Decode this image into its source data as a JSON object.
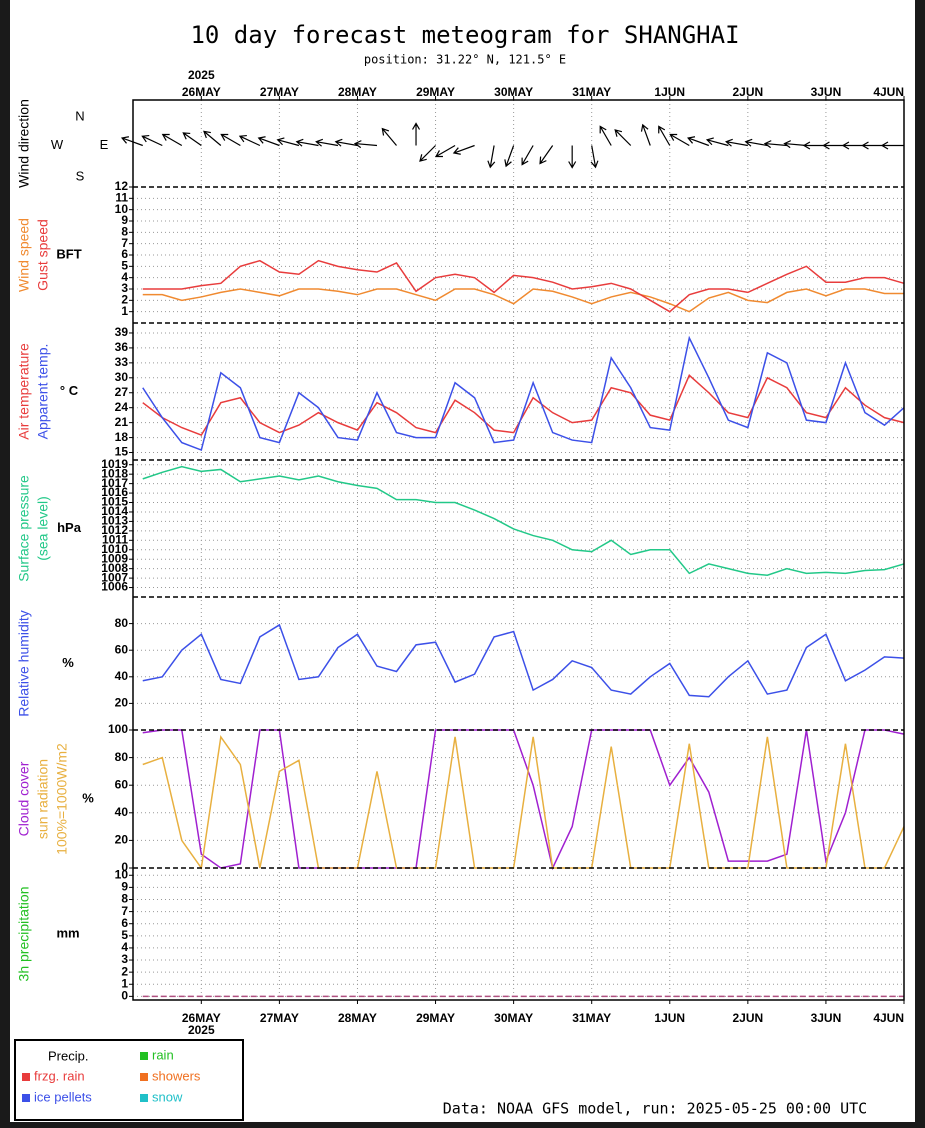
{
  "title": "10 day forecast meteogram for SHANGHAI",
  "subtitle": "position: 31.22° N, 121.5° E",
  "footer": "Data: NOAA GFS model, run: 2025-05-25 00:00 UTC",
  "year": "2025",
  "time": {
    "xlim": [
      3,
      240
    ],
    "xticks": [
      {
        "value": 24,
        "label": "26MAY"
      },
      {
        "value": 48,
        "label": "27MAY"
      },
      {
        "value": 72,
        "label": "28MAY"
      },
      {
        "value": 96,
        "label": "29MAY"
      },
      {
        "value": 120,
        "label": "30MAY"
      },
      {
        "value": 144,
        "label": "31MAY"
      },
      {
        "value": 168,
        "label": "1JUN"
      },
      {
        "value": 192,
        "label": "2JUN"
      },
      {
        "value": 216,
        "label": "3JUN"
      },
      {
        "value": 240,
        "label": "4JUN"
      }
    ],
    "x": [
      6,
      12,
      18,
      24,
      30,
      36,
      42,
      48,
      54,
      60,
      66,
      72,
      78,
      84,
      90,
      96,
      102,
      108,
      114,
      120,
      126,
      132,
      138,
      144,
      150,
      156,
      162,
      168,
      174,
      180,
      186,
      192,
      198,
      204,
      210,
      216,
      222,
      228,
      234,
      240
    ]
  },
  "chart_data": [
    {
      "type": "wind_direction",
      "label": "Wind direction",
      "compass": [
        "N",
        "W",
        "E",
        "S"
      ],
      "color": "#000000",
      "values": [
        110,
        115,
        120,
        125,
        130,
        120,
        115,
        110,
        105,
        100,
        100,
        100,
        95,
        140,
        180,
        45,
        60,
        70,
        10,
        20,
        30,
        35,
        0,
        350,
        150,
        135,
        160,
        150,
        120,
        110,
        105,
        100,
        100,
        95,
        95,
        90,
        90,
        90,
        90,
        90
      ]
    },
    {
      "type": "line",
      "unit": "BFT",
      "ylim": [
        0,
        12
      ],
      "yticks": [
        1,
        2,
        3,
        4,
        5,
        6,
        7,
        8,
        9,
        10,
        11,
        12
      ],
      "grid": true,
      "series": [
        {
          "name": "Wind speed",
          "color": "#f08a30",
          "values": [
            2.5,
            2.5,
            2,
            2.3,
            2.7,
            3,
            2.7,
            2.4,
            3,
            3,
            2.8,
            2.5,
            3,
            3,
            2.5,
            2,
            3,
            3,
            2.5,
            1.7,
            3,
            2.8,
            2.3,
            1.7,
            2.3,
            2.7,
            2.3,
            1.7,
            1,
            2.2,
            2.7,
            2,
            1.8,
            2.7,
            3,
            2.4,
            3,
            3,
            2.6,
            2.6
          ]
        },
        {
          "name": "Gust speed",
          "color": "#e83c3c",
          "values": [
            3,
            3,
            3,
            3.3,
            3.5,
            5,
            5.5,
            4.5,
            4.3,
            5.5,
            5,
            4.7,
            4.5,
            5.3,
            2.8,
            4,
            4.3,
            4,
            2.7,
            4.2,
            4,
            3.6,
            3,
            3.2,
            3.5,
            3,
            2,
            1,
            2.5,
            3,
            3,
            2.7,
            3.5,
            4.3,
            5,
            3.6,
            3.6,
            4,
            4,
            3.5
          ]
        }
      ]
    },
    {
      "type": "line",
      "unit": "° C",
      "ylim": [
        13.5,
        41
      ],
      "yticks": [
        15,
        18,
        21,
        24,
        27,
        30,
        33,
        36,
        39
      ],
      "grid": true,
      "series": [
        {
          "name": "Air temperature",
          "color": "#e83c3c",
          "values": [
            25,
            22,
            20,
            18.5,
            25,
            26,
            21,
            19,
            20.5,
            23,
            21,
            19.5,
            25,
            23,
            20,
            19,
            25.5,
            23,
            19.5,
            19,
            26,
            23,
            21,
            21.5,
            28,
            27,
            22.5,
            21.5,
            30.5,
            27,
            23,
            22,
            30,
            28,
            23,
            22,
            28,
            24.5,
            22,
            21
          ]
        },
        {
          "name": "Apparent temp.",
          "color": "#3c50e8",
          "values": [
            28,
            22,
            17,
            15.5,
            31,
            28,
            18,
            17,
            27,
            24,
            18,
            17.5,
            27,
            19,
            18,
            18,
            29,
            26,
            17,
            17.5,
            29,
            19,
            17.5,
            17,
            34,
            28,
            20,
            19.5,
            38,
            30,
            21.5,
            20,
            35,
            33,
            21.5,
            21,
            33,
            23,
            20.5,
            24
          ]
        }
      ]
    },
    {
      "type": "line",
      "unit": "hPa",
      "ylim": [
        1005,
        1019.5
      ],
      "yticks": [
        1006,
        1007,
        1008,
        1009,
        1010,
        1011,
        1012,
        1013,
        1014,
        1015,
        1016,
        1017,
        1018,
        1019
      ],
      "grid": true,
      "series": [
        {
          "name": "Surface pressure",
          "sublabel": "(sea level)",
          "color": "#22c888",
          "values": [
            1017.5,
            1018.2,
            1018.8,
            1018.3,
            1018.5,
            1017.2,
            1017.5,
            1017.8,
            1017.4,
            1017.8,
            1017.2,
            1016.8,
            1016.5,
            1015.3,
            1015.3,
            1015.0,
            1015.0,
            1014.2,
            1013.3,
            1012.2,
            1011.5,
            1011.0,
            1010.0,
            1009.8,
            1011.0,
            1009.5,
            1010.0,
            1010.0,
            1007.5,
            1008.5,
            1008.0,
            1007.5,
            1007.3,
            1008.0,
            1007.5,
            1007.6,
            1007.5,
            1007.8,
            1007.9,
            1008.5
          ]
        }
      ]
    },
    {
      "type": "line",
      "unit": "%",
      "ylim": [
        0,
        100
      ],
      "yticks": [
        20,
        40,
        60,
        80
      ],
      "grid": true,
      "series": [
        {
          "name": "Relative humidity",
          "color": "#3c50e8",
          "values": [
            37,
            40,
            60,
            72,
            38,
            35,
            70,
            79,
            38,
            40,
            62,
            72,
            48,
            44,
            64,
            66,
            36,
            42,
            70,
            74,
            30,
            38,
            52,
            47,
            30,
            27,
            40,
            50,
            26,
            25,
            40,
            52,
            27,
            30,
            62,
            72,
            37,
            45,
            55,
            54
          ]
        }
      ]
    },
    {
      "type": "line",
      "unit": "%",
      "ylim": [
        0,
        100
      ],
      "yticks": [
        0,
        20,
        40,
        60,
        80,
        100
      ],
      "grid": true,
      "series": [
        {
          "name": "Cloud cover",
          "color": "#a020d0",
          "values": [
            98,
            100,
            100,
            10,
            0,
            3,
            100,
            100,
            0,
            0,
            0,
            0,
            0,
            0,
            0,
            100,
            100,
            100,
            100,
            100,
            60,
            0,
            30,
            100,
            100,
            100,
            100,
            60,
            80,
            55,
            5,
            5,
            5,
            10,
            100,
            5,
            40,
            100,
            100,
            97
          ]
        },
        {
          "name": "sun radiation",
          "sublabel": "100%=1000W/m2",
          "color": "#e8b040",
          "values": [
            75,
            80,
            20,
            0,
            95,
            75,
            0,
            70,
            78,
            0,
            0,
            0,
            70,
            0,
            0,
            0,
            95,
            0,
            0,
            0,
            95,
            0,
            0,
            0,
            88,
            0,
            0,
            0,
            90,
            0,
            0,
            0,
            95,
            0,
            0,
            0,
            90,
            0,
            0,
            30
          ]
        }
      ]
    },
    {
      "type": "line",
      "unit": "mm",
      "ylim": [
        -0.3,
        10.6
      ],
      "yticks": [
        0,
        1,
        2,
        3,
        4,
        5,
        6,
        7,
        8,
        9,
        10
      ],
      "grid": true,
      "series": [
        {
          "name": "3h precipitation",
          "color": "#22c022",
          "line_color": "#b05080",
          "line_style": "dashed",
          "values": [
            0,
            0,
            0,
            0,
            0,
            0,
            0,
            0,
            0,
            0,
            0,
            0,
            0,
            0,
            0,
            0,
            0,
            0,
            0,
            0,
            0,
            0,
            0,
            0,
            0,
            0,
            0,
            0,
            0,
            0,
            0,
            0,
            0,
            0,
            0,
            0,
            0,
            0,
            0,
            0
          ]
        }
      ]
    }
  ],
  "legend": {
    "title": "Precip.",
    "items": [
      {
        "name": "rain",
        "color": "#22c022"
      },
      {
        "name": "frzg. rain",
        "color": "#e83c3c"
      },
      {
        "name": "showers",
        "color": "#f07020"
      },
      {
        "name": "ice pellets",
        "color": "#3c50e8"
      },
      {
        "name": "snow",
        "color": "#20c0c8"
      }
    ]
  }
}
